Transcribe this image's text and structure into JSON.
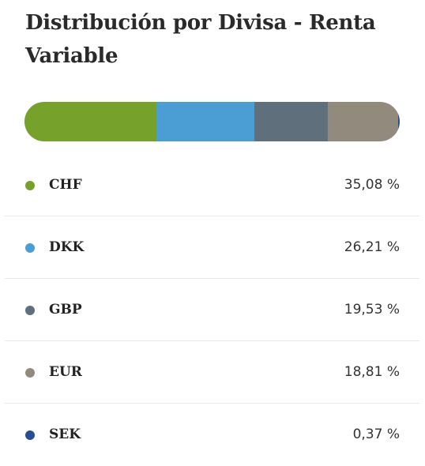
{
  "chart_data": {
    "type": "bar",
    "title": "Distribución por Divisa - Renta Variable",
    "stacked": true,
    "orientation": "horizontal",
    "series": [
      {
        "name": "CHF",
        "value": 35.08,
        "label": "35,08 %",
        "color": "#76a22b"
      },
      {
        "name": "DKK",
        "value": 26.21,
        "label": "26,21 %",
        "color": "#4a9ed4"
      },
      {
        "name": "GBP",
        "value": 19.53,
        "label": "19,53 %",
        "color": "#5f6f7c"
      },
      {
        "name": "EUR",
        "value": 18.81,
        "label": "18,81 %",
        "color": "#938a7e"
      },
      {
        "name": "SEK",
        "value": 0.37,
        "label": "0,37 %",
        "color": "#284f95"
      }
    ]
  }
}
